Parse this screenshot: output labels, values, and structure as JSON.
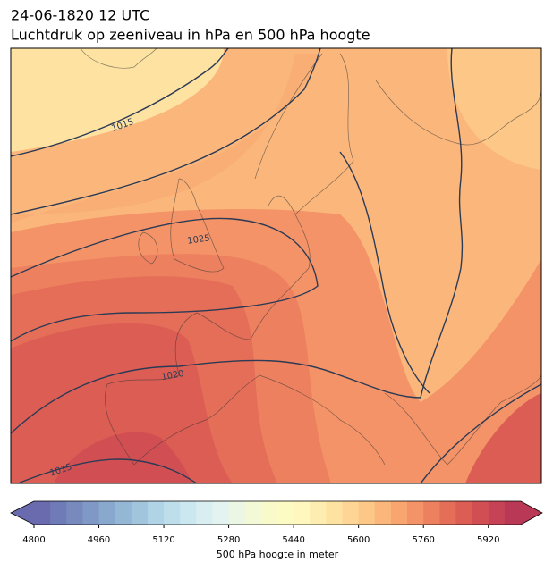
{
  "header": {
    "title_line1": "24-06-1820 12 UTC",
    "title_line2": "Luchtdruk op zeeniveau in hPa en 500 hPa hoogte"
  },
  "map": {
    "contour_labels": [
      1015,
      1025,
      1020,
      1015
    ]
  },
  "colorbar": {
    "label": "500 hPa hoogte in meter",
    "range": [
      4800,
      6000
    ],
    "ticks": [
      4800,
      4960,
      5120,
      5280,
      5440,
      5600,
      5760,
      5920
    ],
    "colors": [
      "#6a6bae",
      "#6f7bb6",
      "#7889be",
      "#8098c6",
      "#89a8ce",
      "#95b7d6",
      "#a2c5de",
      "#b0d3e6",
      "#bedeeb",
      "#cbe7ef",
      "#d8eef1",
      "#e3f3ef",
      "#ecf6e4",
      "#f3f8d7",
      "#f9facb",
      "#fdfbc4",
      "#fff7bd",
      "#feedb0",
      "#fee2a2",
      "#fed594",
      "#fdc787",
      "#fbb77b",
      "#f8a570",
      "#f39367",
      "#ed815f",
      "#e56e58",
      "#dc5d54",
      "#d14f53",
      "#c54354",
      "#b83856"
    ]
  }
}
